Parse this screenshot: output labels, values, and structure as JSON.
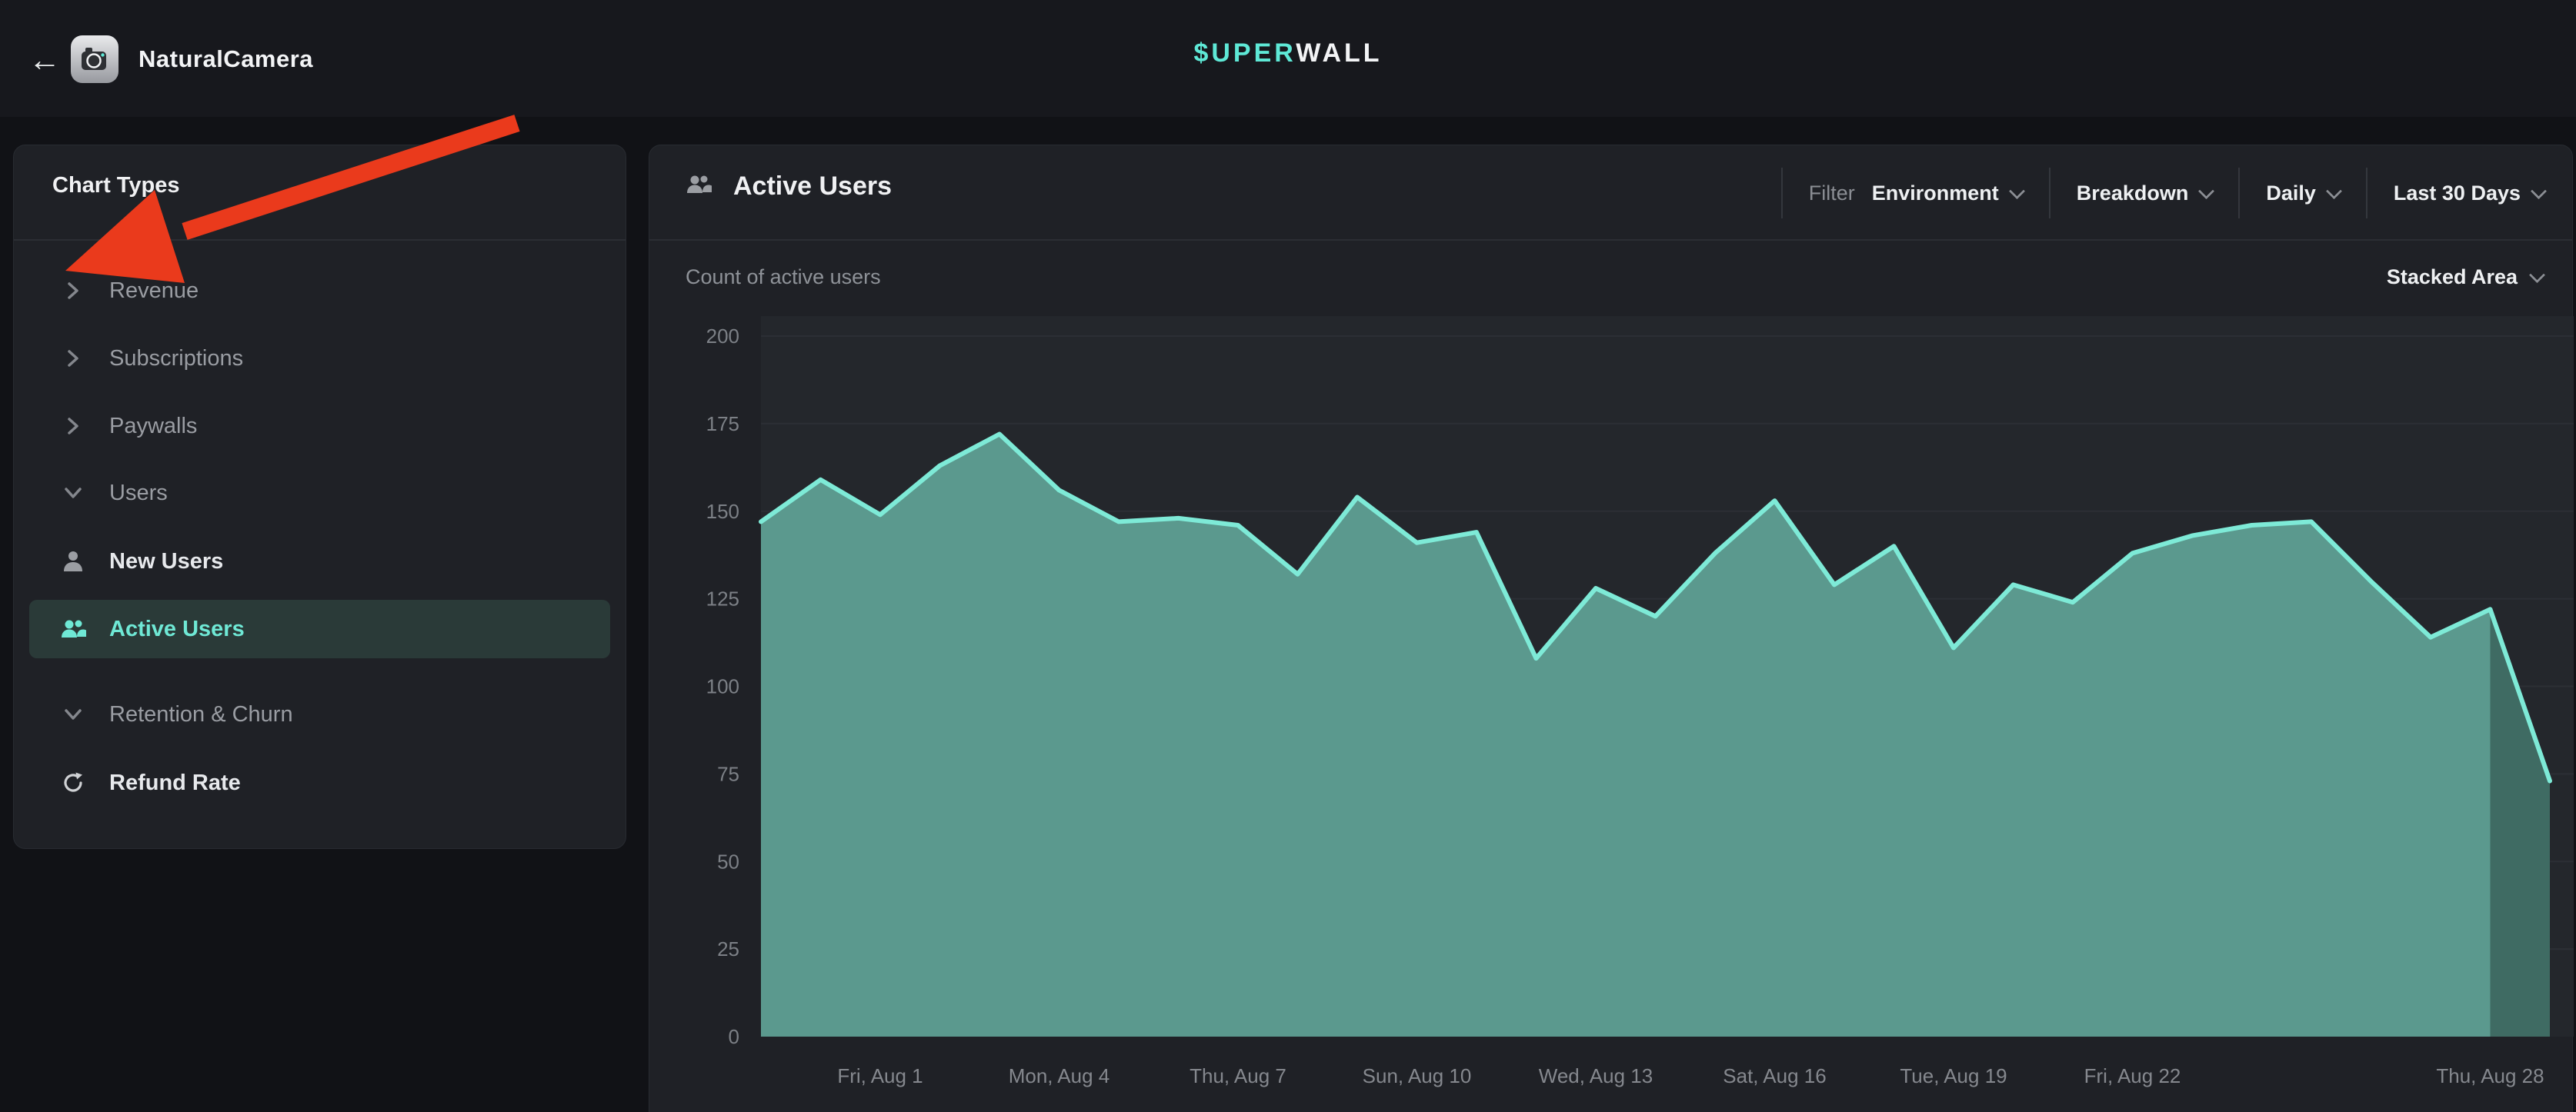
{
  "topbar": {
    "back_label": "←",
    "app_name": "NaturalCamera",
    "logo_teal": "$UPER",
    "logo_white": "WALL"
  },
  "sidebar": {
    "title": "Chart Types",
    "items": [
      {
        "id": "revenue",
        "label": "Revenue",
        "kind": "group",
        "state": "collapsed"
      },
      {
        "id": "subscriptions",
        "label": "Subscriptions",
        "kind": "group",
        "state": "collapsed"
      },
      {
        "id": "paywalls",
        "label": "Paywalls",
        "kind": "group",
        "state": "collapsed"
      },
      {
        "id": "users",
        "label": "Users",
        "kind": "group",
        "state": "expanded"
      },
      {
        "id": "new-users",
        "label": "New Users",
        "kind": "leaf",
        "icon": "user-icon",
        "selected": false
      },
      {
        "id": "active-users",
        "label": "Active Users",
        "kind": "leaf",
        "icon": "users-icon",
        "selected": true
      },
      {
        "id": "retention-churn",
        "label": "Retention & Churn",
        "kind": "group",
        "state": "expanded"
      },
      {
        "id": "refund-rate",
        "label": "Refund Rate",
        "kind": "leaf",
        "icon": "refresh-icon",
        "selected": false
      }
    ]
  },
  "main": {
    "title": "Active Users",
    "subtitle": "Count of active users",
    "chart_type_selector": "Stacked Area",
    "filters": [
      {
        "id": "environment",
        "prefix": "Filter",
        "label": "Environment"
      },
      {
        "id": "breakdown",
        "prefix": "",
        "label": "Breakdown"
      },
      {
        "id": "granularity",
        "prefix": "",
        "label": "Daily"
      },
      {
        "id": "date-range",
        "prefix": "",
        "label": "Last 30 Days"
      }
    ]
  },
  "annotation": {
    "type": "red-arrow",
    "points_at": "Revenue",
    "color": "#ea3a1c"
  },
  "chart_data": {
    "type": "area",
    "title": "Active Users",
    "ylabel": "Count of active users",
    "legend": "none",
    "grid": "horizontal",
    "ylim": [
      0,
      200
    ],
    "yticks": [
      0,
      25,
      50,
      75,
      100,
      125,
      150,
      175,
      200
    ],
    "x": [
      "Jul 30",
      "Jul 31",
      "Aug 1",
      "Aug 2",
      "Aug 3",
      "Aug 4",
      "Aug 5",
      "Aug 6",
      "Aug 7",
      "Aug 8",
      "Aug 9",
      "Aug 10",
      "Aug 11",
      "Aug 12",
      "Aug 13",
      "Aug 14",
      "Aug 15",
      "Aug 16",
      "Aug 17",
      "Aug 18",
      "Aug 19",
      "Aug 20",
      "Aug 21",
      "Aug 22",
      "Aug 23",
      "Aug 24",
      "Aug 25",
      "Aug 26",
      "Aug 27",
      "Aug 28",
      "Aug 29"
    ],
    "values": [
      147,
      159,
      149,
      163,
      172,
      156,
      147,
      148,
      146,
      132,
      154,
      141,
      144,
      108,
      128,
      120,
      138,
      153,
      129,
      140,
      111,
      129,
      124,
      138,
      143,
      146,
      147,
      130,
      114,
      122,
      73
    ],
    "xticks": [
      {
        "index": 2,
        "label": "Fri, Aug 1"
      },
      {
        "index": 5,
        "label": "Mon, Aug 4"
      },
      {
        "index": 8,
        "label": "Thu, Aug 7"
      },
      {
        "index": 11,
        "label": "Sun, Aug 10"
      },
      {
        "index": 14,
        "label": "Wed, Aug 13"
      },
      {
        "index": 17,
        "label": "Sat, Aug 16"
      },
      {
        "index": 20,
        "label": "Tue, Aug 19"
      },
      {
        "index": 23,
        "label": "Fri, Aug 22"
      },
      {
        "index": 29,
        "label": "Thu, Aug 28"
      }
    ],
    "partial_last_segment": true,
    "colors": {
      "line": "#7eead7",
      "fill": "#5b998e",
      "fill_partial": "#3f6b63",
      "plot_bg": "#24272c",
      "grid": "#2c2f35",
      "tick": "#7c8086",
      "xtick": "#85888e"
    }
  }
}
